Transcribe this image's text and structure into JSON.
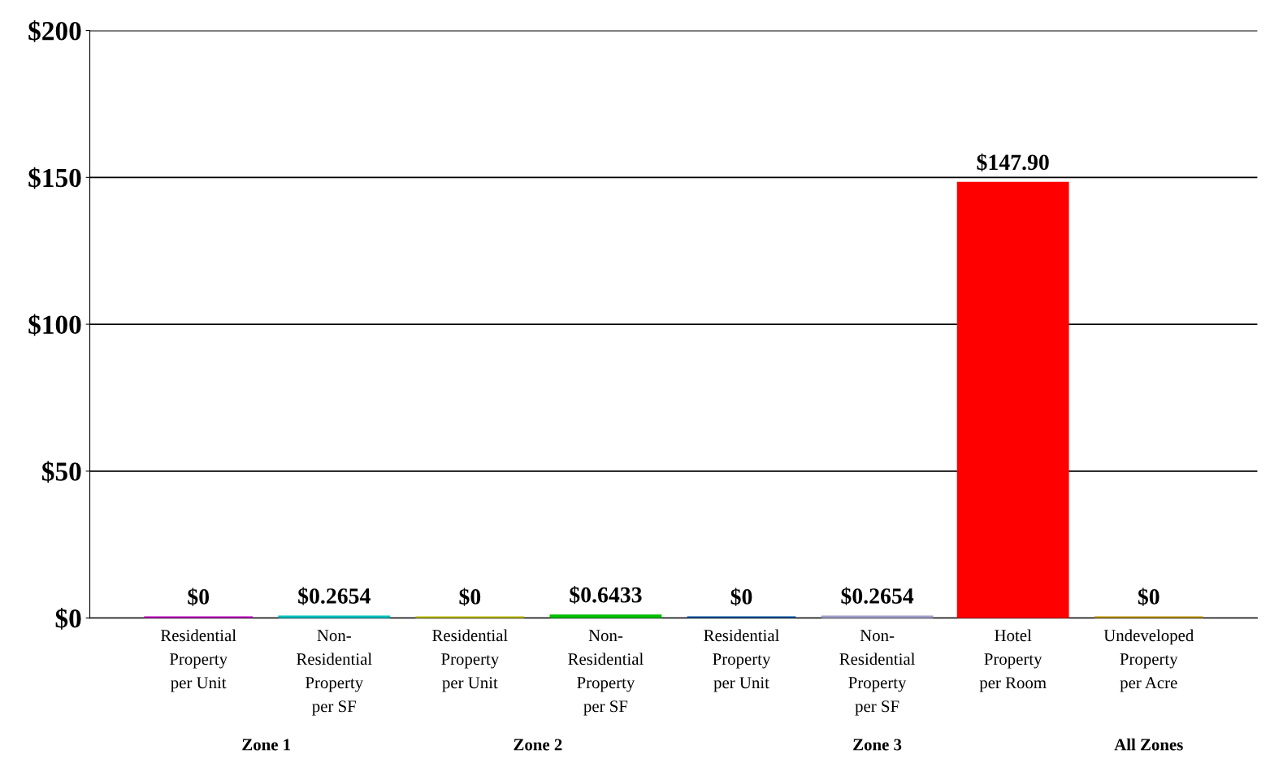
{
  "chart_data": {
    "type": "bar",
    "categories": [
      "Residential\nProperty\nper Unit",
      "Non-\nResidential\nProperty\nper SF",
      "Residential\nProperty\nper Unit",
      "Non-\nResidential\nProperty\nper SF",
      "Residential\nProperty\nper Unit",
      "Non-\nResidential\nProperty\nper SF",
      "Hotel\nProperty\nper Room",
      "Undeveloped\nProperty\nper Acre"
    ],
    "values": [
      0,
      0.2654,
      0,
      0.6433,
      0,
      0.2654,
      147.9,
      0
    ],
    "colors": [
      "#c000c0",
      "#00c0c0",
      "#c0c000",
      "#00c000",
      "#0050a0",
      "#a0a0c8",
      "#ff0000",
      "#c09600"
    ],
    "value_labels": [
      "$0",
      "$0.2654",
      "$0",
      "$0.6433",
      "$0",
      "$0.2654",
      "$147.90",
      "$0"
    ],
    "ylim": [
      0,
      200
    ],
    "yticks": [
      {
        "value": 0,
        "label": "$0"
      },
      {
        "value": 50,
        "label": "$50"
      },
      {
        "value": 100,
        "label": "$100"
      },
      {
        "value": 150,
        "label": "$150"
      },
      {
        "value": 200,
        "label": "$200"
      }
    ],
    "grid": "y",
    "annotations": [
      "Zone 1",
      "Zone 2",
      "Zone 3",
      "All Zones"
    ]
  }
}
